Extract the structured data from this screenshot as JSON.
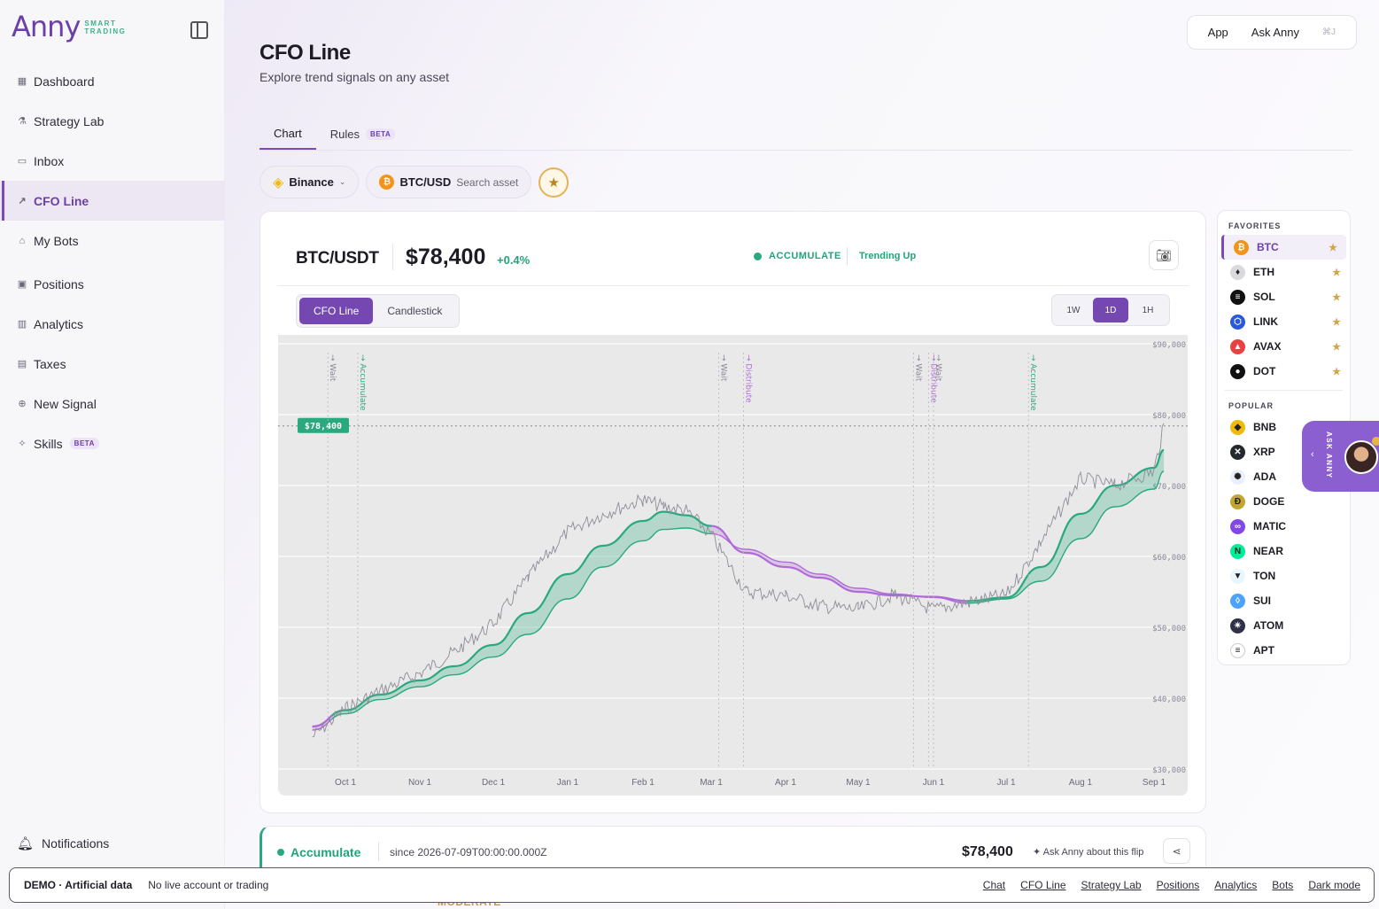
{
  "brand": {
    "name": "Anny",
    "tagline_1": "SMART",
    "tagline_2": "TRADING"
  },
  "sidebar": {
    "items": [
      {
        "label": "Dashboard",
        "icon": "grid-icon"
      },
      {
        "label": "Strategy Lab",
        "icon": "flask-icon"
      },
      {
        "label": "Inbox",
        "icon": "inbox-icon"
      },
      {
        "label": "CFO Line",
        "icon": "trend-icon",
        "active": true
      },
      {
        "label": "My Bots",
        "icon": "bot-icon"
      },
      {
        "label": "Positions",
        "icon": "briefcase-icon"
      },
      {
        "label": "Analytics",
        "icon": "bar-chart-icon"
      },
      {
        "label": "Taxes",
        "icon": "receipt-icon"
      },
      {
        "label": "New Signal",
        "icon": "plus-circle-icon"
      },
      {
        "label": "Skills",
        "icon": "sparkle-icon",
        "badge": "BETA"
      }
    ],
    "notifications_label": "Notifications"
  },
  "topbar": {
    "app": "App",
    "ask": "Ask Anny",
    "shortcut": "⌘J"
  },
  "page": {
    "title": "CFO Line",
    "subtitle": "Explore trend signals on any asset"
  },
  "tabs": [
    {
      "label": "Chart",
      "active": true
    },
    {
      "label": "Rules",
      "badge": "BETA"
    }
  ],
  "selectors": {
    "exchange": "Binance",
    "asset": "BTC/USD",
    "search_placeholder": "Search asset"
  },
  "card": {
    "pair": "BTC/USDT",
    "price": "$78,400",
    "change": "+0.4%",
    "signal": "ACCUMULATE",
    "trend": "Trending Up",
    "modes": [
      "CFO Line",
      "Candlestick"
    ],
    "active_mode": "CFO Line",
    "timeframes": [
      "1W",
      "1D",
      "1H"
    ],
    "active_tf": "1D"
  },
  "colors": {
    "accent": "#7447b1",
    "up": "#2aa97f",
    "distribute": "#b06ad8"
  },
  "chart_data": {
    "type": "line",
    "x_ticks": [
      "Oct 1",
      "Nov 1",
      "Dec 1",
      "Jan 1",
      "Feb 1",
      "Mar 1",
      "Apr 1",
      "May 1",
      "Jun 1",
      "Jul 1",
      "Aug 1",
      "Sep 1"
    ],
    "y_ticks": [
      "$30,000",
      "$40,000",
      "$50,000",
      "$60,000",
      "$70,000",
      "$80,000",
      "$90,000"
    ],
    "ylim": [
      30000,
      90000
    ],
    "last_price_label": "$78,400",
    "series": [
      {
        "x": [
          "Sep 14",
          "Oct 1",
          "Oct 15",
          "Nov 1",
          "Nov 15",
          "Dec 1",
          "Dec 15",
          "Jan 1",
          "Jan 15",
          "Feb 1",
          "Feb 10",
          "Feb 20",
          "Mar 1",
          "Mar 15",
          "Apr 1",
          "Apr 15",
          "May 1",
          "May 15",
          "Jun 1",
          "Jun 15",
          "Jul 1",
          "Jul 15",
          "Aug 1",
          "Aug 15",
          "Sep 1",
          "Sep 5"
        ],
        "values": [
          34500,
          38500,
          41000,
          43500,
          46500,
          50500,
          57000,
          63500,
          66000,
          68000,
          67000,
          66500,
          63000,
          55000,
          54500,
          53000,
          52500,
          54500,
          52500,
          53500,
          54500,
          62000,
          71000,
          70000,
          72000,
          78400
        ]
      },
      {
        "x": [
          "Sep 14",
          "Oct 1",
          "Oct 15",
          "Nov 1",
          "Nov 15",
          "Dec 1",
          "Dec 15",
          "Jan 1",
          "Jan 15",
          "Feb 1",
          "Feb 10",
          "Feb 20",
          "Mar 1",
          "Mar 15",
          "Apr 1",
          "Apr 15",
          "May 1",
          "May 15",
          "Jun 1",
          "Jun 15",
          "Jul 1",
          "Jul 15",
          "Aug 1",
          "Aug 15",
          "Sep 1",
          "Sep 5"
        ],
        "values": [
          36000,
          38300,
          40500,
          42500,
          44500,
          47500,
          52000,
          57500,
          61500,
          65000,
          66300,
          65800,
          64300,
          60500,
          58500,
          57000,
          55000,
          54500,
          54300,
          53700,
          54200,
          58500,
          66000,
          70000,
          72500,
          75000
        ]
      },
      {
        "x": [
          "Sep 14",
          "Oct 1",
          "Oct 15",
          "Nov 1",
          "Nov 15",
          "Dec 1",
          "Dec 15",
          "Jan 1",
          "Jan 15",
          "Feb 1",
          "Feb 10",
          "Feb 20",
          "Mar 1",
          "Mar 15",
          "Apr 1",
          "Apr 15",
          "May 1",
          "May 15",
          "Jun 1",
          "Jun 15",
          "Jul 1",
          "Jul 15",
          "Aug 1",
          "Aug 15",
          "Sep 1",
          "Sep 5"
        ],
        "values": [
          35500,
          37800,
          39800,
          41600,
          43300,
          45800,
          49000,
          54000,
          58500,
          62200,
          63800,
          64000,
          63200,
          61000,
          59200,
          57500,
          55500,
          54700,
          54200,
          53400,
          54000,
          56500,
          62500,
          67000,
          69500,
          72000
        ]
      }
    ],
    "markers": [
      {
        "x": "Sep 22",
        "label": "Wait",
        "kind": "wait"
      },
      {
        "x": "Oct 6",
        "label": "Accumulate",
        "kind": "accumulate"
      },
      {
        "x": "Mar 4",
        "label": "Wait",
        "kind": "wait"
      },
      {
        "x": "Mar 14",
        "label": "Distribute",
        "kind": "distribute"
      },
      {
        "x": "May 23",
        "label": "Wait",
        "kind": "wait"
      },
      {
        "x": "May 29",
        "label": "Distribute",
        "kind": "distribute"
      },
      {
        "x": "Jun 1",
        "label": "Wait",
        "kind": "wait"
      },
      {
        "x": "Jul 10",
        "label": "Accumulate",
        "kind": "accumulate"
      }
    ]
  },
  "watchlist": {
    "favorites_title": "FAVORITES",
    "popular_title": "POPULAR",
    "favorites": [
      {
        "sym": "BTC",
        "color": "#f2931a",
        "glyph": "₿"
      },
      {
        "sym": "ETH",
        "color": "#d9d9de",
        "glyph": "♦"
      },
      {
        "sym": "SOL",
        "color": "#111",
        "glyph": "≡"
      },
      {
        "sym": "LINK",
        "color": "#2a5ada",
        "glyph": "⬡"
      },
      {
        "sym": "AVAX",
        "color": "#e84142",
        "glyph": "▲"
      },
      {
        "sym": "DOT",
        "color": "#111",
        "glyph": "●"
      }
    ],
    "popular": [
      {
        "sym": "BNB",
        "color": "#f0b90b",
        "glyph": "◆"
      },
      {
        "sym": "XRP",
        "color": "#23292f",
        "glyph": "✕"
      },
      {
        "sym": "ADA",
        "color": "#eaf0fb",
        "glyph": "✺"
      },
      {
        "sym": "DOGE",
        "color": "#c2a633",
        "glyph": "Ð"
      },
      {
        "sym": "MATIC",
        "color": "#8247e5",
        "glyph": "∞"
      },
      {
        "sym": "NEAR",
        "color": "#00ec97",
        "glyph": "N"
      },
      {
        "sym": "TON",
        "color": "#eaf6ff",
        "glyph": "▼"
      },
      {
        "sym": "SUI",
        "color": "#4da2ff",
        "glyph": "◊"
      },
      {
        "sym": "ATOM",
        "color": "#2e3148",
        "glyph": "✴"
      },
      {
        "sym": "APT",
        "color": "#fff",
        "glyph": "≡"
      }
    ]
  },
  "ask_side": {
    "label": "ASK ANNY"
  },
  "flip": {
    "status": "Accumulate",
    "since": "since 2026-07-09T00:00:00.000Z",
    "price": "$78,400",
    "ask": "Ask Anny about this flip",
    "below": "MODERATE"
  },
  "banner": {
    "demo": "DEMO · Artificial data",
    "note": "No live account or trading",
    "links": [
      "Chat",
      "CFO Line",
      "Strategy Lab",
      "Positions",
      "Analytics",
      "Bots",
      "Dark mode"
    ]
  }
}
